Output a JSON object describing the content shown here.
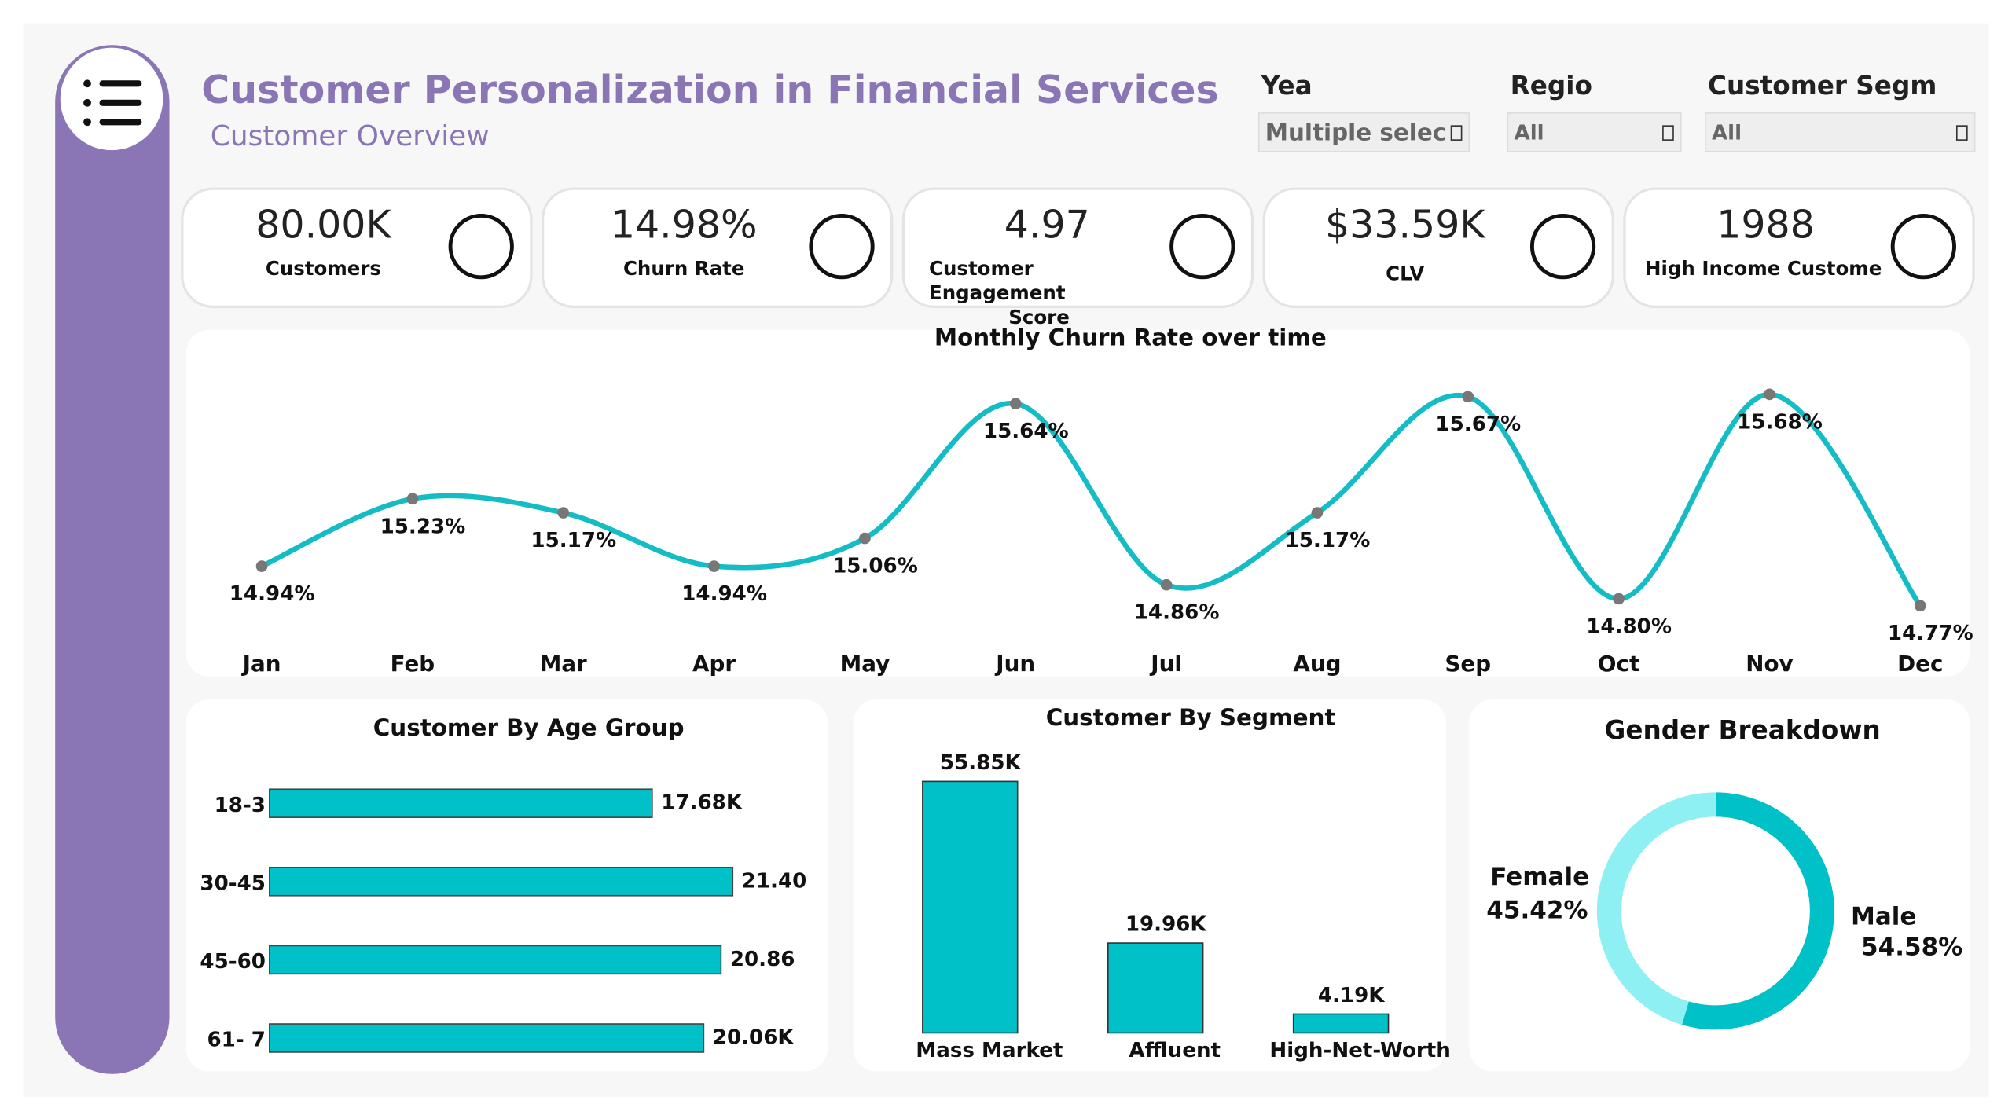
{
  "header": {
    "title": "Customer Personalization in Financial Services",
    "subtitle": "Customer Overview"
  },
  "filters": [
    {
      "label": "Yea",
      "value": "Multiple selec"
    },
    {
      "label": "Regio",
      "value": "All"
    },
    {
      "label": "Customer Segm",
      "value": "All"
    }
  ],
  "kpis": [
    {
      "value": "80.00K",
      "label": "Customers"
    },
    {
      "value": "14.98%",
      "label": "Churn Rate"
    },
    {
      "value": "4.97",
      "label": "Customer Engagement Score"
    },
    {
      "value": "$33.59K",
      "label": "CLV"
    },
    {
      "value": "1988",
      "label": "High Income Custome"
    }
  ],
  "chart_data": [
    {
      "type": "line",
      "title": "Monthly Churn Rate over time",
      "categories": [
        "Jan",
        "Feb",
        "Mar",
        "Apr",
        "May",
        "Jun",
        "Jul",
        "Aug",
        "Sep",
        "Oct",
        "Nov",
        "Dec"
      ],
      "values": [
        14.94,
        15.23,
        15.17,
        14.94,
        15.06,
        15.64,
        14.86,
        15.17,
        15.67,
        14.8,
        15.68,
        14.77
      ],
      "value_labels": [
        "14.94%",
        "15.23%",
        "15.17%",
        "14.94%",
        "15.06%",
        "15.64%",
        "14.86%",
        "15.17%",
        "15.67%",
        "14.80%",
        "15.68%",
        "14.77%"
      ],
      "color": "#14bcc6"
    },
    {
      "type": "barh",
      "title": "Customer By Age Group",
      "categories": [
        "18-3",
        "30-45",
        "45-60",
        "61- 7"
      ],
      "values": [
        17.68,
        21.4,
        20.86,
        20.06
      ],
      "value_labels": [
        "17.68K",
        "21.40",
        "20.86",
        "20.06K"
      ],
      "color": "#00c0c8"
    },
    {
      "type": "bar",
      "title": "Customer By Segment",
      "categories": [
        "Mass Market",
        "Affluent",
        "High-Net-Worth"
      ],
      "values": [
        55.85,
        19.96,
        4.19
      ],
      "value_labels": [
        "55.85K",
        "19.96K",
        "4.19K"
      ],
      "color": "#00c0c8"
    },
    {
      "type": "donut",
      "title": "Gender Breakdown",
      "categories": [
        "Male",
        "Female"
      ],
      "values": [
        54.58,
        45.42
      ],
      "value_labels": [
        "54.58%",
        "45.42%"
      ],
      "colors": [
        "#00c0c8",
        "#8ef0f3"
      ]
    }
  ]
}
